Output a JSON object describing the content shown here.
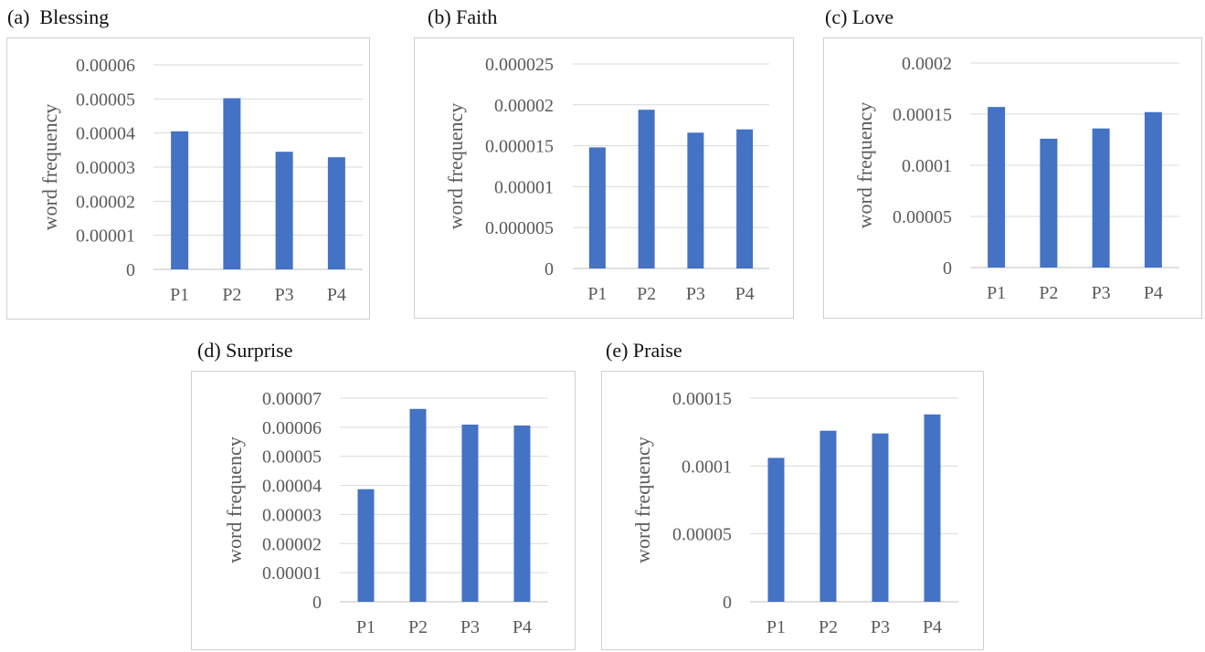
{
  "charts": [
    {
      "label": "(a)  Blessing"
    },
    {
      "label": "(b) Faith"
    },
    {
      "label": "(c) Love"
    },
    {
      "label": "(d) Surprise"
    },
    {
      "label": "(e) Praise"
    }
  ],
  "chart_data": [
    {
      "type": "bar",
      "title": "(a)  Blessing",
      "ylabel": "word frequency",
      "categories": [
        "P1",
        "P2",
        "P3",
        "P4"
      ],
      "values": [
        4.05e-05,
        5.02e-05,
        3.45e-05,
        3.29e-05
      ],
      "ylim": [
        0,
        6e-05
      ],
      "yticks": [
        "0",
        "0.00001",
        "0.00002",
        "0.00003",
        "0.00004",
        "0.00005",
        "0.00006"
      ],
      "color": "#4472C4",
      "grid": true
    },
    {
      "type": "bar",
      "title": "(b) Faith",
      "ylabel": "word frequency",
      "categories": [
        "P1",
        "P2",
        "P3",
        "P4"
      ],
      "values": [
        1.48e-05,
        1.94e-05,
        1.66e-05,
        1.7e-05
      ],
      "ylim": [
        0,
        2.5e-05
      ],
      "yticks": [
        "0",
        "0.000005",
        "0.00001",
        "0.000015",
        "0.00002",
        "0.000025"
      ],
      "color": "#4472C4",
      "grid": true
    },
    {
      "type": "bar",
      "title": "(c) Love",
      "ylabel": "word frequency",
      "categories": [
        "P1",
        "P2",
        "P3",
        "P4"
      ],
      "values": [
        0.000157,
        0.000126,
        0.000136,
        0.000152
      ],
      "ylim": [
        0,
        0.0002
      ],
      "yticks": [
        "0",
        "0.00005",
        "0.0001",
        "0.00015",
        "0.0002"
      ],
      "color": "#4472C4",
      "grid": true
    },
    {
      "type": "bar",
      "title": "(d) Surprise",
      "ylabel": "word frequency",
      "categories": [
        "P1",
        "P2",
        "P3",
        "P4"
      ],
      "values": [
        3.87e-05,
        6.63e-05,
        6.09e-05,
        6.06e-05
      ],
      "ylim": [
        0,
        7e-05
      ],
      "yticks": [
        "0",
        "0.00001",
        "0.00002",
        "0.00003",
        "0.00004",
        "0.00005",
        "0.00006",
        "0.00007"
      ],
      "color": "#4472C4",
      "grid": true
    },
    {
      "type": "bar",
      "title": "(e) Praise",
      "ylabel": "word frequency",
      "categories": [
        "P1",
        "P2",
        "P3",
        "P4"
      ],
      "values": [
        0.000106,
        0.000126,
        0.000124,
        0.000138
      ],
      "ylim": [
        0,
        0.00015
      ],
      "yticks": [
        "0",
        "0.00005",
        "0.0001",
        "0.00015"
      ],
      "color": "#4472C4",
      "grid": true
    }
  ]
}
